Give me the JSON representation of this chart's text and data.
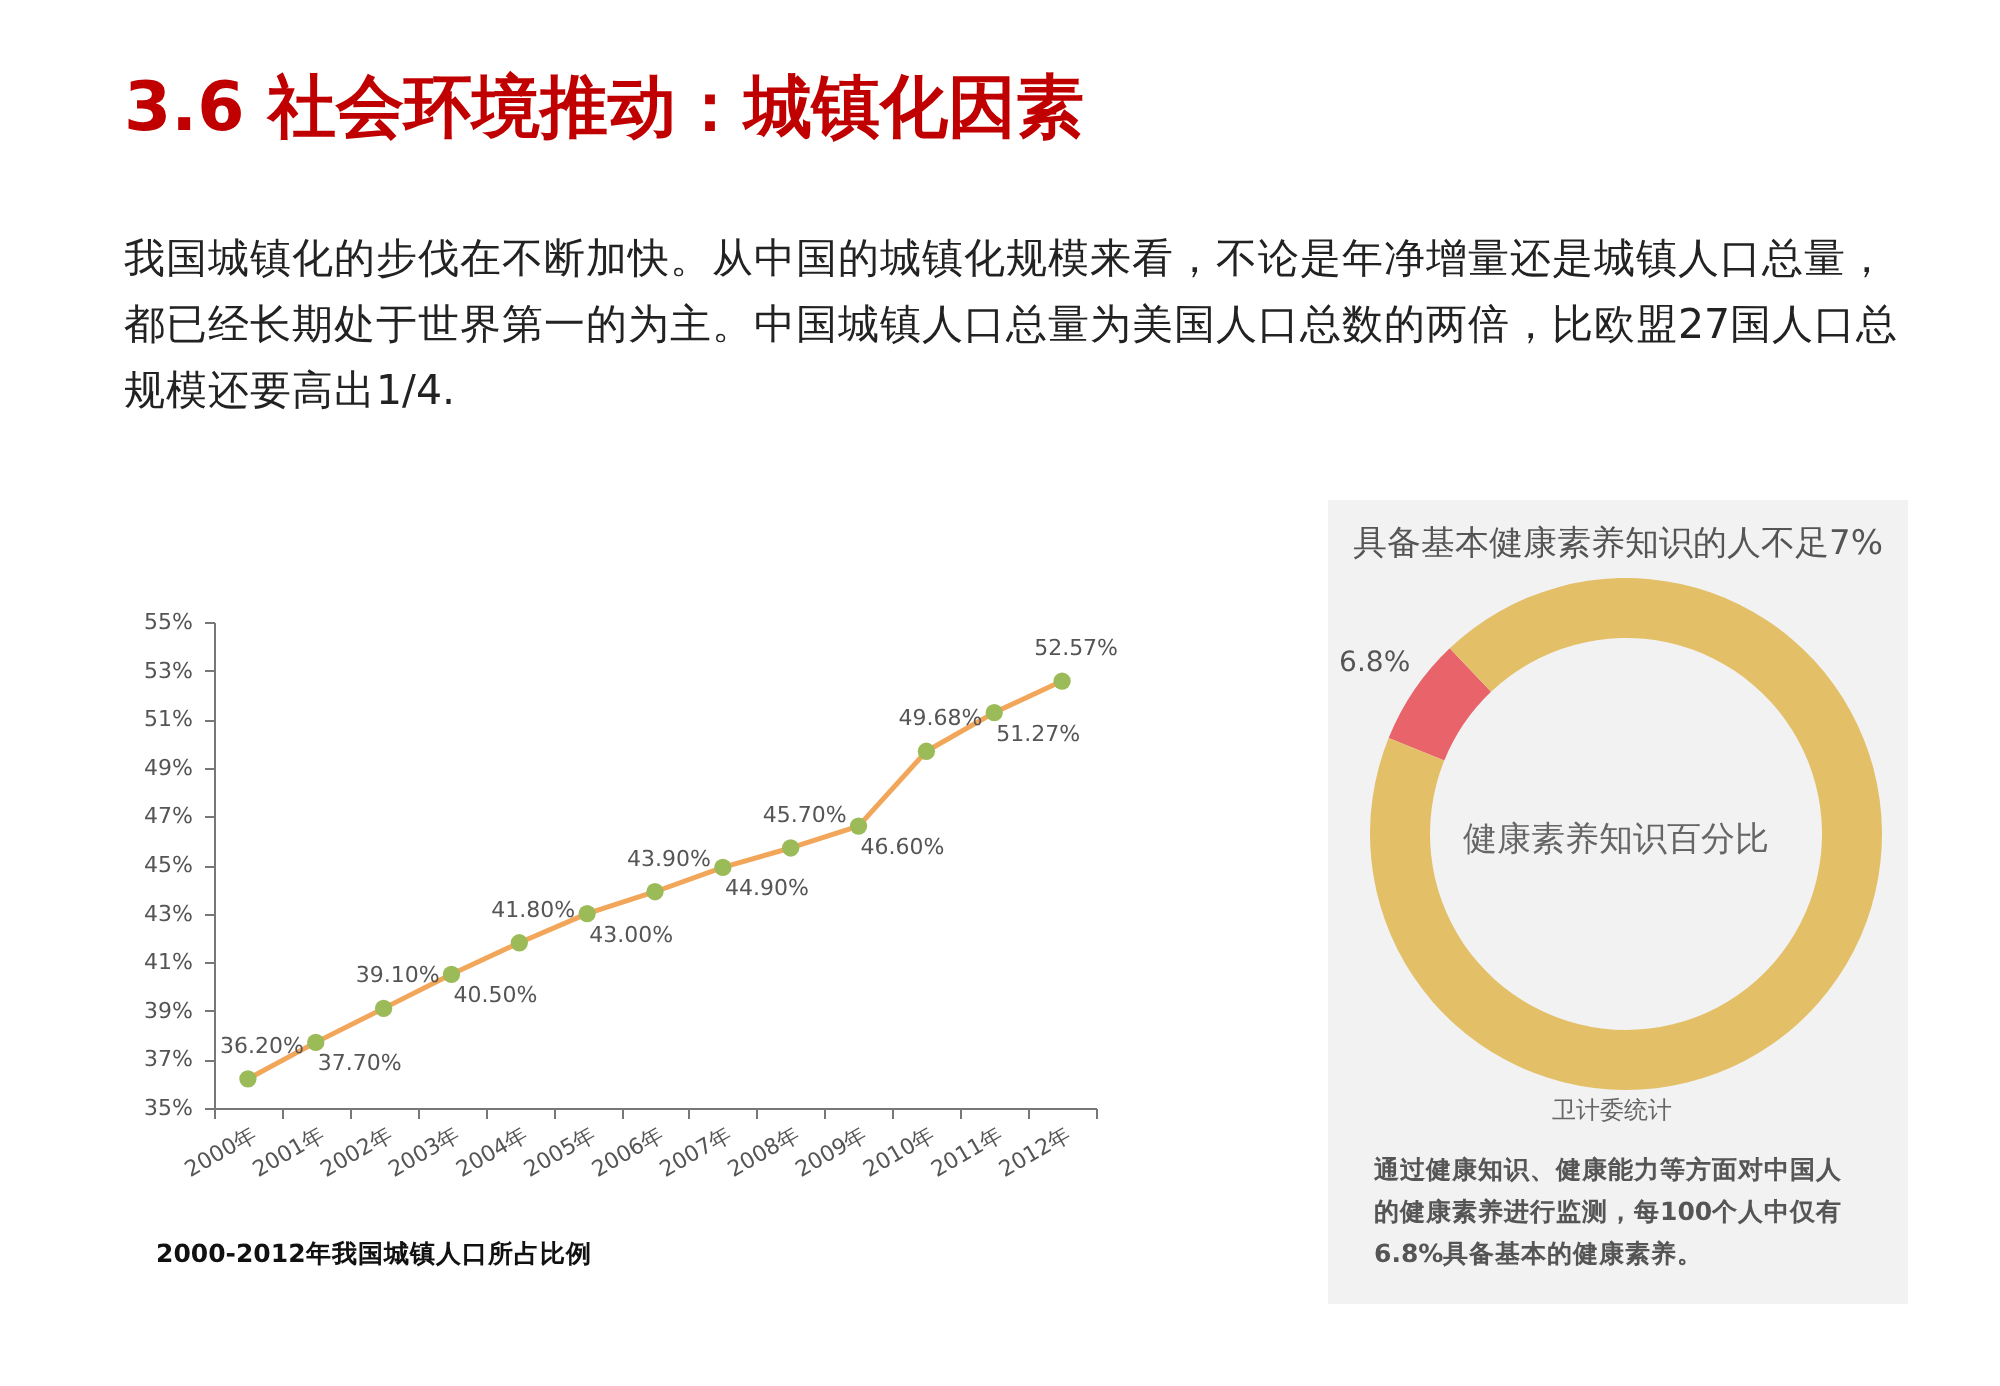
{
  "chart_data": [
    {
      "type": "other",
      "title": "3.6 社会环境推动：城镇化因素",
      "subtitle": "我国城镇化的步伐在不断加快。从中国的城镇化规模来看，不论是年净增量还是城镇人口总量，都已经长期处于世界第一的为主。中国城镇人口总量为美国人口总数的两倍，比欧盟27国人口总规模还要高出1/4."
    },
    {
      "type": "line",
      "categories": [
        "2000年",
        "2001年",
        "2002年",
        "2003年",
        "2004年",
        "2005年",
        "2006年",
        "2007年",
        "2008年",
        "2009年",
        "2010年",
        "2011年",
        "2012年"
      ],
      "series": [
        {
          "color": "#f2a65a",
          "colors": [
            "#9bbb59",
            "#9bbb59",
            "#9bbb59",
            "#9bbb59",
            "#9bbb59",
            "#9bbb59",
            "#9bbb59",
            "#9bbb59",
            "#9bbb59",
            "#9bbb59",
            "#9bbb59",
            "#9bbb59",
            "#9bbb59"
          ],
          "values": [
            36.2,
            37.7,
            39.1,
            40.5,
            41.8,
            43.0,
            43.9,
            44.9,
            45.7,
            46.6,
            49.68,
            51.27,
            52.57
          ],
          "value_labels": [
            "36.20%",
            "37.70%",
            "39.10%",
            "40.50%",
            "41.80%",
            "43.00%",
            "43.90%",
            "44.90%",
            "45.70%",
            "46.60%",
            "49.68%",
            "51.27%",
            "52.57%"
          ]
        }
      ],
      "ylim": [
        35,
        55
      ],
      "yticks": [
        {
          "value": 35,
          "label": "35%"
        },
        {
          "value": 37,
          "label": "37%"
        },
        {
          "value": 39,
          "label": "39%"
        },
        {
          "value": 41,
          "label": "41%"
        },
        {
          "value": 43,
          "label": "43%"
        },
        {
          "value": 45,
          "label": "45%"
        },
        {
          "value": 47,
          "label": "47%"
        },
        {
          "value": 49,
          "label": "49%"
        },
        {
          "value": 51,
          "label": "51%"
        },
        {
          "value": 53,
          "label": "53%"
        },
        {
          "value": 55,
          "label": "55%"
        }
      ],
      "marker": "circle",
      "annotations": [
        "2000-2012年我国城镇人口所占比例"
      ]
    },
    {
      "type": "donut",
      "title": "具备基本健康素养知识的人不足7%",
      "categories": [
        null,
        null
      ],
      "values": [
        6.8,
        93.2
      ],
      "colors": [
        "#e8636a",
        "#e3c068"
      ],
      "value_labels": [
        "6.8%",
        null
      ],
      "annotations": [
        "健康素养知识百分比",
        "卫计委统计",
        "通过健康知识、健康能力等方面对中国人的健康素养进行监测，每100个人中仅有6.8%具备基本的健康素养。"
      ]
    }
  ]
}
